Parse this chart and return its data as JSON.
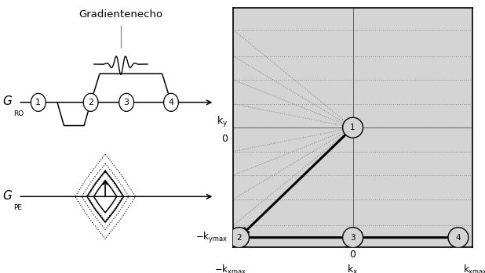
{
  "bg_color": "#d4d4d4",
  "white_bg": "#ffffff",
  "title": "Gradientenecho",
  "circle_labels_gro": [
    "1",
    "2",
    "3",
    "4"
  ],
  "circle_labels_kspace": [
    "1",
    "2",
    "3",
    "4"
  ],
  "fan_ky_levels": [
    0.82,
    0.6,
    0.4,
    0.2,
    -0.2,
    -0.4,
    -0.6,
    -0.82
  ],
  "ky_dotted_levels": [
    0.82,
    0.6,
    0.4,
    0.2,
    -0.2,
    -0.4,
    -0.6,
    -0.82
  ]
}
